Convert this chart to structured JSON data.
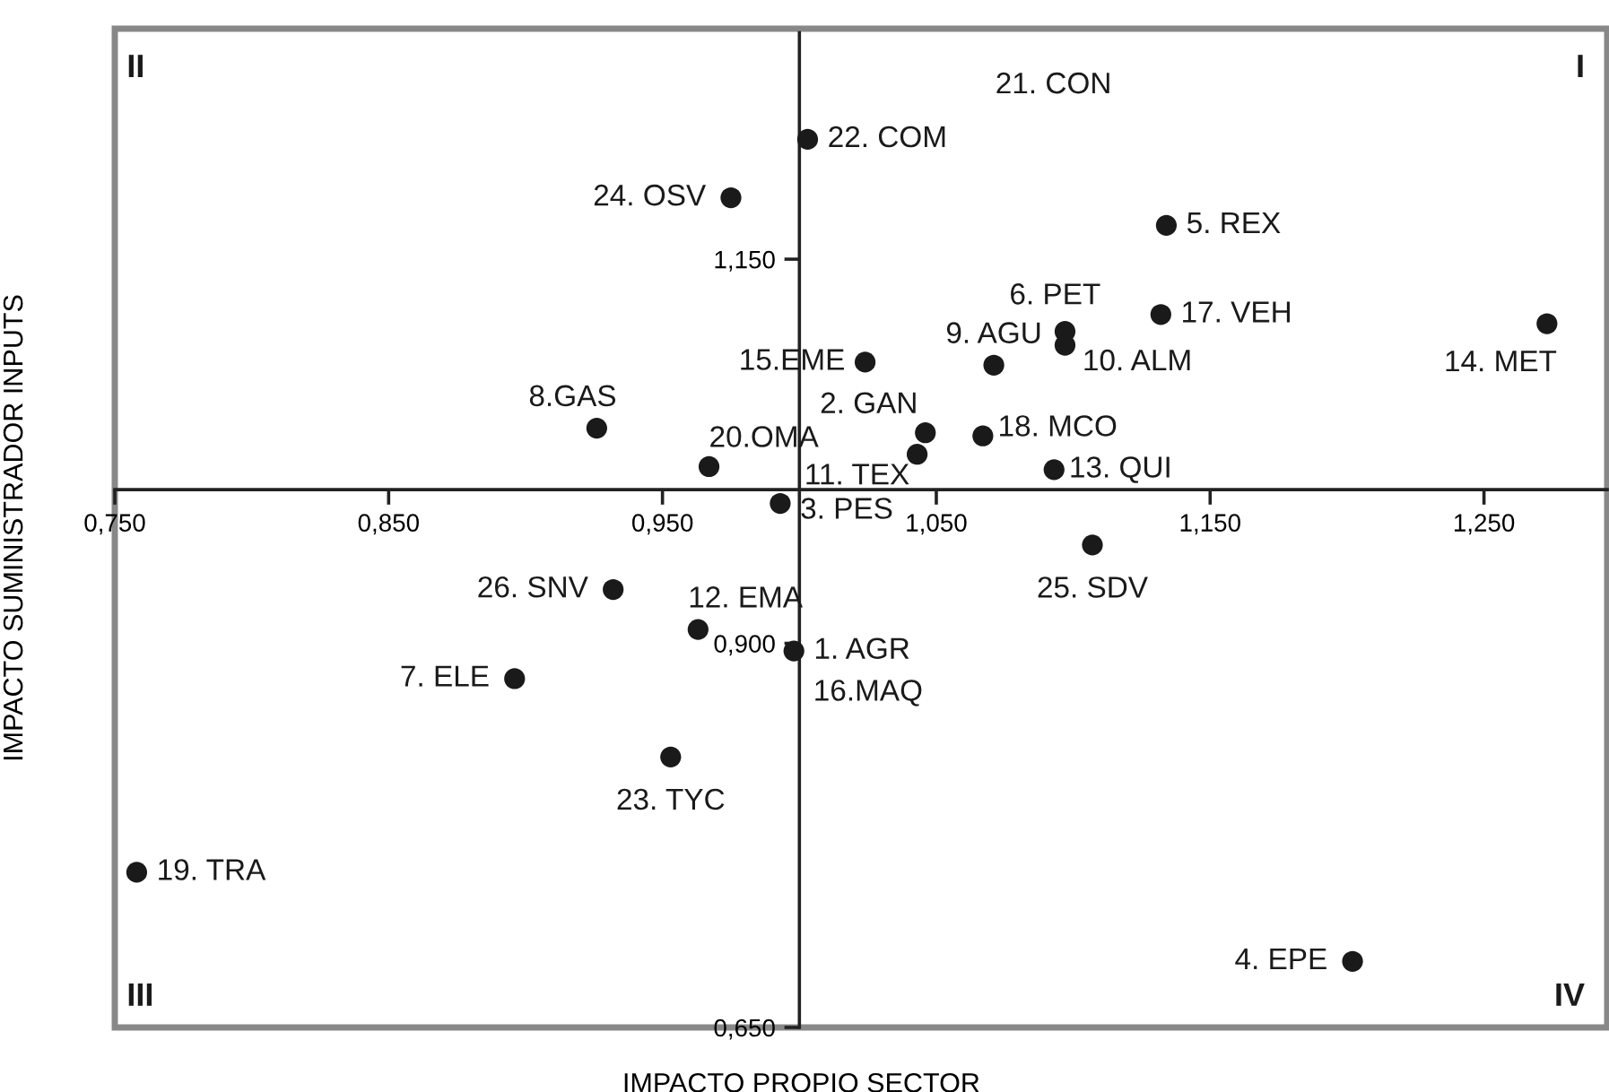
{
  "chart_data": {
    "type": "scatter",
    "xlabel": "IMPACTO PROPIO SECTOR",
    "ylabel": "IMPACTO SUMINISTRADOR INPUTS",
    "xlim": [
      0.75,
      1.295
    ],
    "ylim": [
      0.65,
      1.3
    ],
    "xticks": [
      {
        "value": 0.75,
        "label": "0,750"
      },
      {
        "value": 0.85,
        "label": "0,850"
      },
      {
        "value": 0.95,
        "label": "0,950"
      },
      {
        "value": 1.05,
        "label": "1,050"
      },
      {
        "value": 1.15,
        "label": "1,150"
      },
      {
        "value": 1.25,
        "label": "1,250"
      }
    ],
    "yticks": [
      {
        "value": 0.65,
        "label": "0,650"
      },
      {
        "value": 0.9,
        "label": "0,900"
      },
      {
        "value": 1.15,
        "label": "1,150"
      }
    ],
    "grid": false,
    "legend": false,
    "marker": "circle",
    "series": [
      {
        "name": "22. COM",
        "color": "#1a1a1a",
        "x": [
          1.003
        ],
        "values": [
          1.228
        ]
      },
      {
        "name": "24. OSV",
        "color": "#1a1a1a",
        "x": [
          0.975
        ],
        "values": [
          1.19
        ]
      },
      {
        "name": "5. REX",
        "color": "#1a1a1a",
        "x": [
          1.134
        ],
        "values": [
          1.172
        ]
      },
      {
        "name": "6. PET",
        "color": "#1a1a1a",
        "x": [
          1.097
        ],
        "values": [
          1.103
        ]
      },
      {
        "name": "17. VEH",
        "color": "#1a1a1a",
        "x": [
          1.132
        ],
        "values": [
          1.114
        ]
      },
      {
        "name": "14. MET",
        "color": "#1a1a1a",
        "x": [
          1.273
        ],
        "values": [
          1.108
        ]
      },
      {
        "name": "9. AGU",
        "color": "#1a1a1a",
        "x": [
          1.071
        ],
        "values": [
          1.081
        ]
      },
      {
        "name": "10. ALM",
        "color": "#1a1a1a",
        "x": [
          1.097
        ],
        "values": [
          1.094
        ]
      },
      {
        "name": "15.EME",
        "color": "#1a1a1a",
        "x": [
          1.024
        ],
        "values": [
          1.083
        ]
      },
      {
        "name": "8.GAS",
        "color": "#1a1a1a",
        "x": [
          0.926
        ],
        "values": [
          1.04
        ]
      },
      {
        "name": "20.OMA",
        "color": "#1a1a1a",
        "x": [
          0.967
        ],
        "values": [
          1.015
        ]
      },
      {
        "name": "2. GAN",
        "color": "#1a1a1a",
        "x": [
          1.046
        ],
        "values": [
          1.037
        ]
      },
      {
        "name": "18. MCO",
        "color": "#1a1a1a",
        "x": [
          1.067
        ],
        "values": [
          1.035
        ]
      },
      {
        "name": "11. TEX",
        "color": "#1a1a1a",
        "x": [
          1.043
        ],
        "values": [
          1.023
        ]
      },
      {
        "name": "13. QUI",
        "color": "#1a1a1a",
        "x": [
          1.093
        ],
        "values": [
          1.013
        ]
      },
      {
        "name": "3. PES",
        "color": "#1a1a1a",
        "x": [
          0.993
        ],
        "values": [
          0.991
        ]
      },
      {
        "name": "25. SDV",
        "color": "#1a1a1a",
        "x": [
          1.107
        ],
        "values": [
          0.964
        ]
      },
      {
        "name": "26. SNV",
        "color": "#1a1a1a",
        "x": [
          0.932
        ],
        "values": [
          0.935
        ]
      },
      {
        "name": "12. EMA",
        "color": "#1a1a1a",
        "x": [
          0.963
        ],
        "values": [
          0.909
        ]
      },
      {
        "name": "1. AGR",
        "color": "#1a1a1a",
        "x": [
          0.998
        ],
        "values": [
          0.895
        ]
      },
      {
        "name": "7. ELE",
        "color": "#1a1a1a",
        "x": [
          0.896
        ],
        "values": [
          0.877
        ]
      },
      {
        "name": "23. TYC",
        "color": "#1a1a1a",
        "x": [
          0.953
        ],
        "values": [
          0.826
        ]
      },
      {
        "name": "19. TRA",
        "color": "#1a1a1a",
        "x": [
          0.758
        ],
        "values": [
          0.751
        ]
      },
      {
        "name": "4. EPE",
        "color": "#1a1a1a",
        "x": [
          1.202
        ],
        "values": [
          0.693
        ]
      }
    ],
    "annotations": [
      "21. CON",
      "16.MAQ",
      "I",
      "II",
      "III",
      "IV"
    ]
  }
}
